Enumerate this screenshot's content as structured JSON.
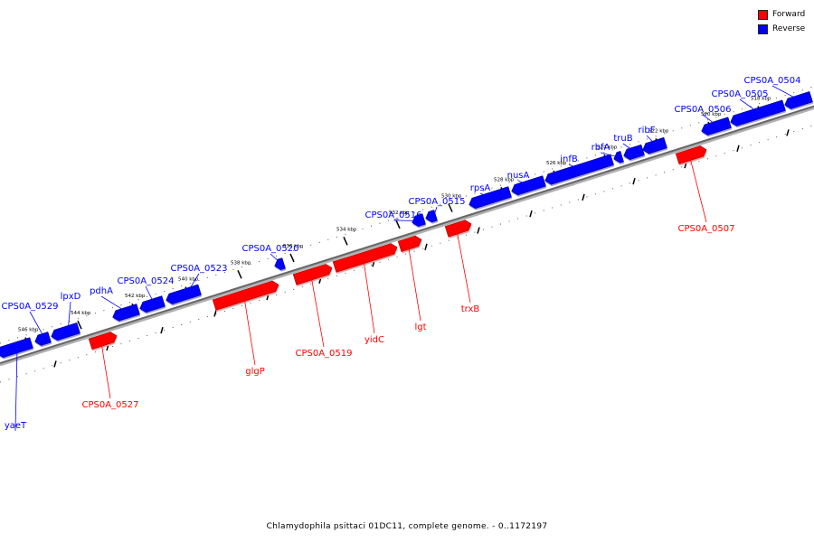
{
  "legend": {
    "items": [
      {
        "label": "Forward",
        "color": "#ff0000"
      },
      {
        "label": "Reverse",
        "color": "#0000ff"
      }
    ]
  },
  "caption": "Chlamydophila psittaci 01DC11, complete genome. - 0..1172197",
  "colors": {
    "forward": "#ff0000",
    "reverse": "#0000ff",
    "backbone": "#666666"
  },
  "ticks": [
    "546 kbp",
    "544 kbp",
    "542 kbp",
    "540 kbp",
    "538 kbp",
    "536 kbp",
    "534 kbp",
    "532 kbp",
    "530 kbp",
    "528 kbp",
    "526 kbp",
    "524 kbp",
    "522 kbp",
    "520 kbp",
    "518 kbp"
  ],
  "genes": [
    {
      "label": "yaeT",
      "strand": "reverse"
    },
    {
      "label": "CPS0A_0529",
      "strand": "reverse"
    },
    {
      "label": "lpxD",
      "strand": "reverse"
    },
    {
      "label": "CPS0A_0527",
      "strand": "forward"
    },
    {
      "label": "pdhA",
      "strand": "reverse"
    },
    {
      "label": "CPS0A_0524",
      "strand": "reverse"
    },
    {
      "label": "CPS0A_0523",
      "strand": "reverse"
    },
    {
      "label": "glgP",
      "strand": "forward"
    },
    {
      "label": "CPS0A_0520",
      "strand": "reverse"
    },
    {
      "label": "CPS0A_0519",
      "strand": "forward"
    },
    {
      "label": "yidC",
      "strand": "forward"
    },
    {
      "label": "lgt",
      "strand": "forward"
    },
    {
      "label": "CPS0A_0516",
      "strand": "reverse"
    },
    {
      "label": "CPS0A_0515",
      "strand": "reverse"
    },
    {
      "label": "trxB",
      "strand": "forward"
    },
    {
      "label": "rpsA",
      "strand": "reverse"
    },
    {
      "label": "nusA",
      "strand": "reverse"
    },
    {
      "label": "infB",
      "strand": "reverse"
    },
    {
      "label": "rbfA",
      "strand": "reverse"
    },
    {
      "label": "truB",
      "strand": "reverse"
    },
    {
      "label": "ribF",
      "strand": "reverse"
    },
    {
      "label": "CPS0A_0507",
      "strand": "forward"
    },
    {
      "label": "CPS0A_0506",
      "strand": "reverse"
    },
    {
      "label": "CPS0A_0505",
      "strand": "reverse"
    },
    {
      "label": "CPS0A_0504",
      "strand": "reverse"
    }
  ]
}
